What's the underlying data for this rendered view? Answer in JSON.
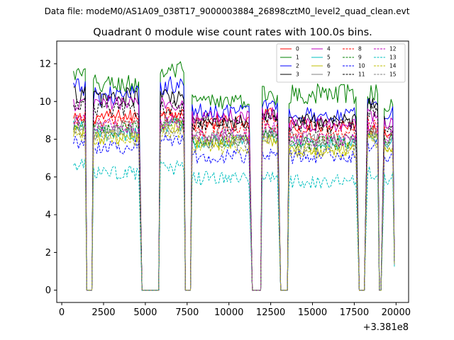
{
  "figure": {
    "suptitle": "Data file: modeM0/AS1A09_038T17_9000003884_26898cztM0_level2_quad_clean.evt"
  },
  "chart_data": {
    "type": "line",
    "title": "Quadrant 0 module wise count rates with 100.0s bins.",
    "xlabel": "",
    "ylabel": "",
    "x_offset_label": "+3.381e8",
    "xlim": [
      -300,
      20750
    ],
    "ylim": [
      -0.65,
      13.2
    ],
    "xticks": [
      0,
      2500,
      5000,
      7500,
      10000,
      12500,
      15000,
      17500,
      20000
    ],
    "xtick_labels": [
      "0",
      "2500",
      "5000",
      "7500",
      "10000",
      "12500",
      "15000",
      "17500",
      "20000"
    ],
    "yticks": [
      0,
      2,
      4,
      6,
      8,
      10,
      12
    ],
    "ytick_labels": [
      "0",
      "2",
      "4",
      "6",
      "8",
      "10",
      "12"
    ],
    "legend": {
      "location": "top-right",
      "columns": 4
    },
    "segments": [
      {
        "start": 700,
        "end": 1400
      },
      {
        "start": 1900,
        "end": 4600
      },
      {
        "start": 5900,
        "end": 7300
      },
      {
        "start": 7800,
        "end": 11200
      },
      {
        "start": 12000,
        "end": 12900
      },
      {
        "start": 13600,
        "end": 17600
      },
      {
        "start": 18300,
        "end": 18900
      },
      {
        "start": 19300,
        "end": 19900
      }
    ],
    "gaps": [
      {
        "start": 1500,
        "end": 1800
      },
      {
        "start": 4800,
        "end": 5800
      },
      {
        "start": 7400,
        "end": 7700
      },
      {
        "start": 11400,
        "end": 11900
      },
      {
        "start": 13100,
        "end": 13500
      },
      {
        "start": 18000,
        "end": 18100
      },
      {
        "start": 19000,
        "end": 19100
      }
    ],
    "x_start": 700,
    "x_end": 19950,
    "x_step": 100,
    "series": [
      {
        "name": "0",
        "color": "#ff0000",
        "dash": "solid",
        "levels": [
          9.0,
          9.2,
          9.5,
          8.9,
          9.3,
          8.8,
          8.6,
          8.5
        ]
      },
      {
        "name": "1",
        "color": "#008000",
        "dash": "solid",
        "levels": [
          11.4,
          10.9,
          11.6,
          10.0,
          10.3,
          10.4,
          10.4,
          9.8
        ]
      },
      {
        "name": "2",
        "color": "#0000ff",
        "dash": "solid",
        "levels": [
          10.7,
          10.3,
          10.9,
          9.5,
          9.9,
          9.3,
          9.8,
          9.4
        ]
      },
      {
        "name": "3",
        "color": "#000000",
        "dash": "solid",
        "levels": [
          10.4,
          10.2,
          10.2,
          9.0,
          9.3,
          9.0,
          9.9,
          8.9
        ]
      },
      {
        "name": "4",
        "color": "#bf00bf",
        "dash": "solid",
        "levels": [
          9.8,
          9.9,
          9.9,
          9.2,
          9.4,
          8.8,
          9.3,
          8.9
        ]
      },
      {
        "name": "5",
        "color": "#00bfbf",
        "dash": "solid",
        "levels": [
          8.6,
          8.3,
          8.7,
          7.9,
          8.1,
          7.8,
          8.2,
          7.9
        ]
      },
      {
        "name": "6",
        "color": "#bfbf00",
        "dash": "solid",
        "levels": [
          8.5,
          8.1,
          8.6,
          7.8,
          8.0,
          7.5,
          8.0,
          7.7
        ]
      },
      {
        "name": "7",
        "color": "#808080",
        "dash": "solid",
        "levels": [
          8.8,
          8.6,
          8.9,
          8.1,
          8.4,
          8.0,
          8.5,
          8.1
        ]
      },
      {
        "name": "8",
        "color": "#ff0000",
        "dash": "dashed",
        "levels": [
          9.1,
          8.9,
          9.2,
          8.5,
          8.8,
          8.3,
          8.9,
          8.4
        ]
      },
      {
        "name": "9",
        "color": "#008000",
        "dash": "dashed",
        "levels": [
          8.7,
          8.5,
          8.8,
          8.0,
          8.3,
          7.8,
          8.4,
          8.0
        ]
      },
      {
        "name": "10",
        "color": "#0000ff",
        "dash": "dashed",
        "levels": [
          7.9,
          7.6,
          8.0,
          7.1,
          7.3,
          7.1,
          7.6,
          7.1
        ]
      },
      {
        "name": "11",
        "color": "#000000",
        "dash": "dashed",
        "levels": [
          9.9,
          9.6,
          9.7,
          8.8,
          9.1,
          8.7,
          9.5,
          8.7
        ]
      },
      {
        "name": "12",
        "color": "#bf00bf",
        "dash": "dashed",
        "levels": [
          8.9,
          8.7,
          8.9,
          8.2,
          8.5,
          8.0,
          8.7,
          8.2
        ]
      },
      {
        "name": "13",
        "color": "#00bfbf",
        "dash": "dashed",
        "levels": [
          6.6,
          6.2,
          6.5,
          5.9,
          6.1,
          5.8,
          6.2,
          5.9
        ]
      },
      {
        "name": "14",
        "color": "#bfbf00",
        "dash": "dashed",
        "levels": [
          8.3,
          8.0,
          8.4,
          7.6,
          7.9,
          7.4,
          7.9,
          7.6
        ]
      },
      {
        "name": "15",
        "color": "#808080",
        "dash": "dashed",
        "levels": [
          8.5,
          8.3,
          8.5,
          7.9,
          8.1,
          7.7,
          8.2,
          7.8
        ]
      }
    ]
  }
}
